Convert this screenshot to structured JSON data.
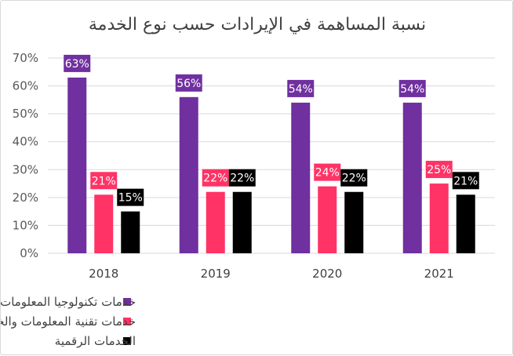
{
  "chart_data": {
    "type": "bar",
    "title": "نسبة المساهمة في الإيرادات حسب نوع الخدمة",
    "categories": [
      "2018",
      "2019",
      "2020",
      "2021"
    ],
    "series": [
      {
        "name": "خدمات تكنولوجيا المعلومات والاتصالات الأساسية",
        "color": "#7030a0",
        "values": [
          63,
          56,
          54,
          54
        ],
        "labels": [
          "63%",
          "56%",
          "54%",
          "54%"
        ]
      },
      {
        "name": "خدمات تقنية المعلومات والخدمات التشغيلية المدارة",
        "color": "#ff3366",
        "values": [
          21,
          22,
          24,
          25
        ],
        "labels": [
          "21%",
          "22%",
          "24%",
          "25%"
        ]
      },
      {
        "name": "الخدمات الرقمية",
        "color": "#000000",
        "values": [
          15,
          22,
          22,
          21
        ],
        "labels": [
          "15%",
          "22%",
          "22%",
          "21%"
        ]
      }
    ],
    "yticks": [
      "0%",
      "10%",
      "20%",
      "30%",
      "40%",
      "50%",
      "60%",
      "70%"
    ],
    "ylim": [
      0,
      70
    ],
    "xlabel": "",
    "ylabel": "",
    "legend_position": "bottom-right",
    "grid": true
  }
}
